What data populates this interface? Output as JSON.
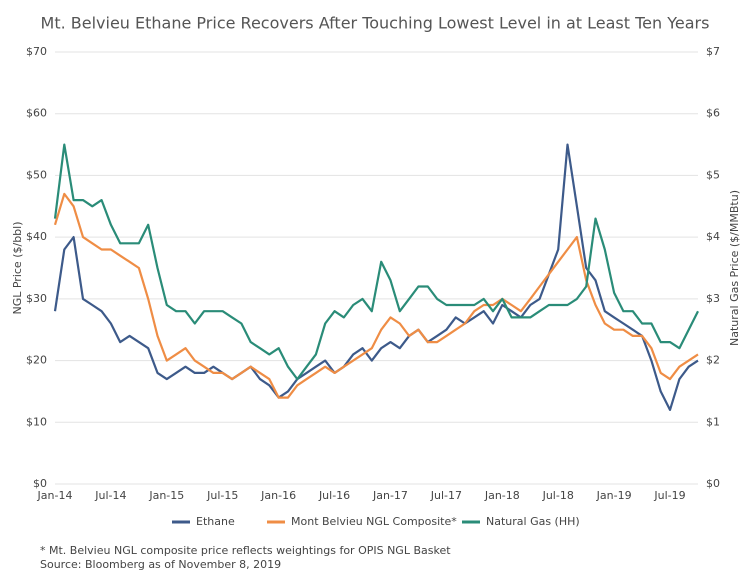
{
  "chart_data": {
    "type": "line",
    "title": "Mt. Belvieu Ethane Price Recovers After Touching Lowest Level in at Least Ten Years",
    "ylabel": "NGL Price ($/bbl)",
    "y2label": "Natural Gas Price ($/MMBtu)",
    "categories": [
      "Jan-14",
      null,
      null,
      null,
      null,
      null,
      "Jul-14",
      null,
      null,
      null,
      null,
      null,
      "Jan-15",
      null,
      null,
      null,
      null,
      null,
      "Jul-15",
      null,
      null,
      null,
      null,
      null,
      "Jan-16",
      null,
      null,
      null,
      null,
      null,
      "Jul-16",
      null,
      null,
      null,
      null,
      null,
      "Jan-17",
      null,
      null,
      null,
      null,
      null,
      "Jul-17",
      null,
      null,
      null,
      null,
      null,
      "Jan-18",
      null,
      null,
      null,
      null,
      null,
      "Jul-18",
      null,
      null,
      null,
      null,
      null,
      "Jan-19",
      null,
      null,
      null,
      null,
      null,
      "Jul-19",
      null,
      null,
      null
    ],
    "series": [
      {
        "name": "Ethane",
        "color": "#3d5a8a",
        "values": [
          28,
          38,
          40,
          30,
          29,
          28,
          26,
          23,
          24,
          23,
          22,
          18,
          17,
          18,
          19,
          18,
          18,
          19,
          18,
          17,
          18,
          19,
          17,
          16,
          14,
          15,
          17,
          18,
          19,
          20,
          18,
          19,
          21,
          22,
          20,
          22,
          23,
          22,
          24,
          25,
          23,
          24,
          25,
          27,
          26,
          27,
          28,
          26,
          29,
          28,
          27,
          29,
          30,
          34,
          38,
          55,
          45,
          35,
          33,
          28,
          27,
          26,
          25,
          24,
          20,
          15,
          12,
          17,
          19,
          20
        ]
      },
      {
        "name": "Mont Belvieu NGL Composite*",
        "color": "#ef8d45",
        "values": [
          42,
          47,
          45,
          40,
          39,
          38,
          38,
          37,
          36,
          35,
          30,
          24,
          20,
          21,
          22,
          20,
          19,
          18,
          18,
          17,
          18,
          19,
          18,
          17,
          14,
          14,
          16,
          17,
          18,
          19,
          18,
          19,
          20,
          21,
          22,
          25,
          27,
          26,
          24,
          25,
          23,
          23,
          24,
          25,
          26,
          28,
          29,
          29,
          30,
          29,
          28,
          30,
          32,
          34,
          36,
          38,
          40,
          33,
          29,
          26,
          25,
          25,
          24,
          24,
          22,
          18,
          17,
          19,
          20,
          21
        ]
      },
      {
        "name": "Natural Gas (HH)",
        "color": "#2a8c78",
        "axis": "y2",
        "values": [
          4.3,
          5.5,
          4.6,
          4.6,
          4.5,
          4.6,
          4.2,
          3.9,
          3.9,
          3.9,
          4.2,
          3.5,
          2.9,
          2.8,
          2.8,
          2.6,
          2.8,
          2.8,
          2.8,
          2.7,
          2.6,
          2.3,
          2.2,
          2.1,
          2.2,
          1.9,
          1.7,
          1.9,
          2.1,
          2.6,
          2.8,
          2.7,
          2.9,
          3.0,
          2.8,
          3.6,
          3.3,
          2.8,
          3.0,
          3.2,
          3.2,
          3.0,
          2.9,
          2.9,
          2.9,
          2.9,
          3.0,
          2.8,
          3.0,
          2.7,
          2.7,
          2.7,
          2.8,
          2.9,
          2.9,
          2.9,
          3.0,
          3.2,
          4.3,
          3.8,
          3.1,
          2.8,
          2.8,
          2.6,
          2.6,
          2.3,
          2.3,
          2.2,
          2.5,
          2.8
        ]
      }
    ],
    "ylim": [
      0,
      70
    ],
    "yticks": [
      {
        "value": 0,
        "label": "$0"
      },
      {
        "value": 10,
        "label": "$10"
      },
      {
        "value": 20,
        "label": "$20"
      },
      {
        "value": 30,
        "label": "$30"
      },
      {
        "value": 40,
        "label": "$40"
      },
      {
        "value": 50,
        "label": "$50"
      },
      {
        "value": 60,
        "label": "$60"
      },
      {
        "value": 70,
        "label": "$70"
      }
    ],
    "y2lim": [
      0,
      7
    ],
    "y2ticks": [
      {
        "value": 0,
        "label": "$0"
      },
      {
        "value": 1,
        "label": "$1"
      },
      {
        "value": 2,
        "label": "$2"
      },
      {
        "value": 3,
        "label": "$3"
      },
      {
        "value": 4,
        "label": "$4"
      },
      {
        "value": 5,
        "label": "$5"
      },
      {
        "value": 6,
        "label": "$6"
      },
      {
        "value": 7,
        "label": "$7"
      }
    ],
    "grid": true,
    "footnote": "* Mt. Belvieu NGL composite price reflects weightings for OPIS NGL Basket",
    "source": "Source: Bloomberg as of November 8, 2019"
  }
}
